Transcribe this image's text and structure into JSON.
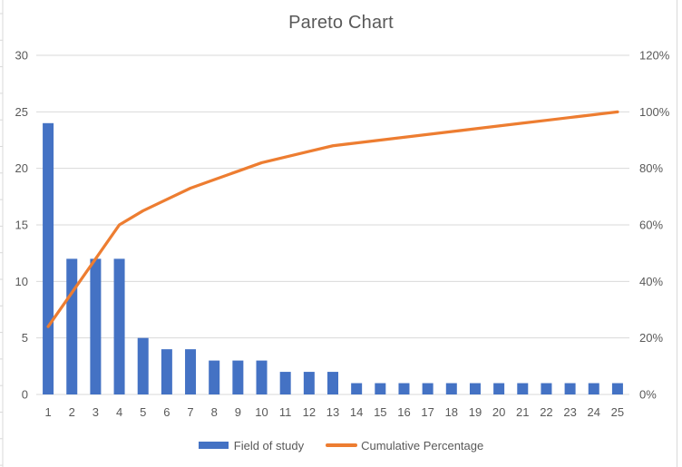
{
  "window": {
    "background": "#FFFFFF"
  },
  "chart_data": {
    "type": "pareto (bar + line combo)",
    "title": "Pareto Chart",
    "categories": [
      1,
      2,
      3,
      4,
      5,
      6,
      7,
      8,
      9,
      10,
      11,
      12,
      13,
      14,
      15,
      16,
      17,
      18,
      19,
      20,
      21,
      22,
      23,
      24,
      25
    ],
    "series": [
      {
        "name": "Field of study",
        "type": "bar",
        "axis": "left",
        "color": "#4472C4",
        "values": [
          24,
          12,
          12,
          12,
          5,
          4,
          4,
          3,
          3,
          3,
          2,
          2,
          2,
          1,
          1,
          1,
          1,
          1,
          1,
          1,
          1,
          1,
          1,
          1,
          1
        ]
      },
      {
        "name": "Cumulative Percentage",
        "type": "line",
        "axis": "right",
        "color": "#ED7D31",
        "unit": "%",
        "values": [
          24,
          36,
          48,
          60,
          65,
          69,
          73,
          76,
          79,
          82,
          84,
          86,
          88,
          89,
          90,
          91,
          92,
          93,
          94,
          95,
          96,
          97,
          98,
          99,
          100
        ]
      }
    ],
    "left_axis": {
      "tick_labels": [
        "0",
        "5",
        "10",
        "15",
        "20",
        "25",
        "30"
      ],
      "min": 0,
      "max": 30
    },
    "right_axis": {
      "tick_labels": [
        "0%",
        "20%",
        "40%",
        "60%",
        "80%",
        "100%",
        "120%"
      ],
      "min_pct": 0,
      "max_pct": 120
    },
    "legend": {
      "position": "bottom",
      "items": [
        {
          "label": "Field of study",
          "swatch": "bar",
          "color": "#4472C4"
        },
        {
          "label": "Cumulative Percentage",
          "swatch": "line",
          "color": "#ED7D31"
        }
      ]
    },
    "grid": true,
    "styles": {
      "gridline_color": "#D9D9D9",
      "axis_text_color": "#595959",
      "title_color": "#595959",
      "edge_line_color": "#D9D9D9"
    }
  }
}
